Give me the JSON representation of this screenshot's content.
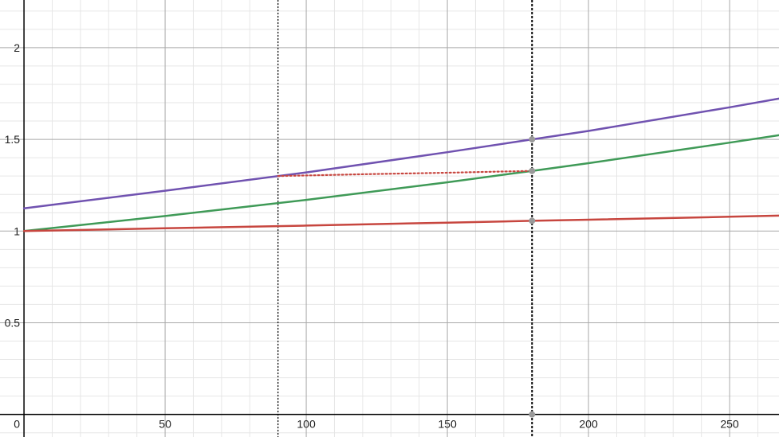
{
  "chart_data": {
    "type": "line",
    "title": "",
    "xlabel": "",
    "ylabel": "",
    "xlim": [
      -8.5,
      267.5
    ],
    "ylim": [
      -0.123,
      2.26
    ],
    "grid": true,
    "x_ticks": [
      {
        "value": 50,
        "label": "50"
      },
      {
        "value": 100,
        "label": "100"
      },
      {
        "value": 150,
        "label": "150"
      },
      {
        "value": 200,
        "label": "200"
      },
      {
        "value": 250,
        "label": "250"
      }
    ],
    "y_ticks": [
      {
        "value": 0.5,
        "label": "0.5"
      },
      {
        "value": 1,
        "label": "1"
      },
      {
        "value": 1.5,
        "label": "1.5"
      },
      {
        "value": 2,
        "label": "2"
      }
    ],
    "origin_label": "0",
    "colors": {
      "purple": "#7052b0",
      "green": "#3f9a57",
      "red": "#c7463f",
      "marker": "#9a9a9a"
    },
    "series": [
      {
        "color": "#7052b0",
        "style": "solid",
        "x": [
          0,
          50,
          100,
          150,
          180,
          200,
          250,
          267.5
        ],
        "y": [
          1.124,
          1.22,
          1.32,
          1.43,
          1.5,
          1.546,
          1.675,
          1.722
        ]
      },
      {
        "color": "#3f9a57",
        "style": "solid",
        "x": [
          0,
          50,
          100,
          150,
          180,
          200,
          250,
          267.5
        ],
        "y": [
          1.0,
          1.082,
          1.17,
          1.266,
          1.328,
          1.37,
          1.482,
          1.523
        ]
      },
      {
        "color": "#c7463f",
        "style": "solid",
        "x": [
          0,
          50,
          100,
          150,
          180,
          200,
          250,
          267.5
        ],
        "y": [
          1.0,
          1.015,
          1.03,
          1.046,
          1.056,
          1.062,
          1.078,
          1.084
        ]
      },
      {
        "color": "#c7463f",
        "style": "dotted",
        "x": [
          90,
          120,
          150,
          180
        ],
        "y": [
          1.3,
          1.31,
          1.318,
          1.328
        ]
      }
    ],
    "vertical_lines": [
      {
        "x": 90,
        "style": "dotted"
      },
      {
        "x": 180,
        "style": "dashed-bold"
      }
    ],
    "points": [
      {
        "x": 180,
        "y": 1.5
      },
      {
        "x": 180,
        "y": 1.328
      },
      {
        "x": 180,
        "y": 1.056
      },
      {
        "x": 180,
        "y": 0
      }
    ]
  }
}
